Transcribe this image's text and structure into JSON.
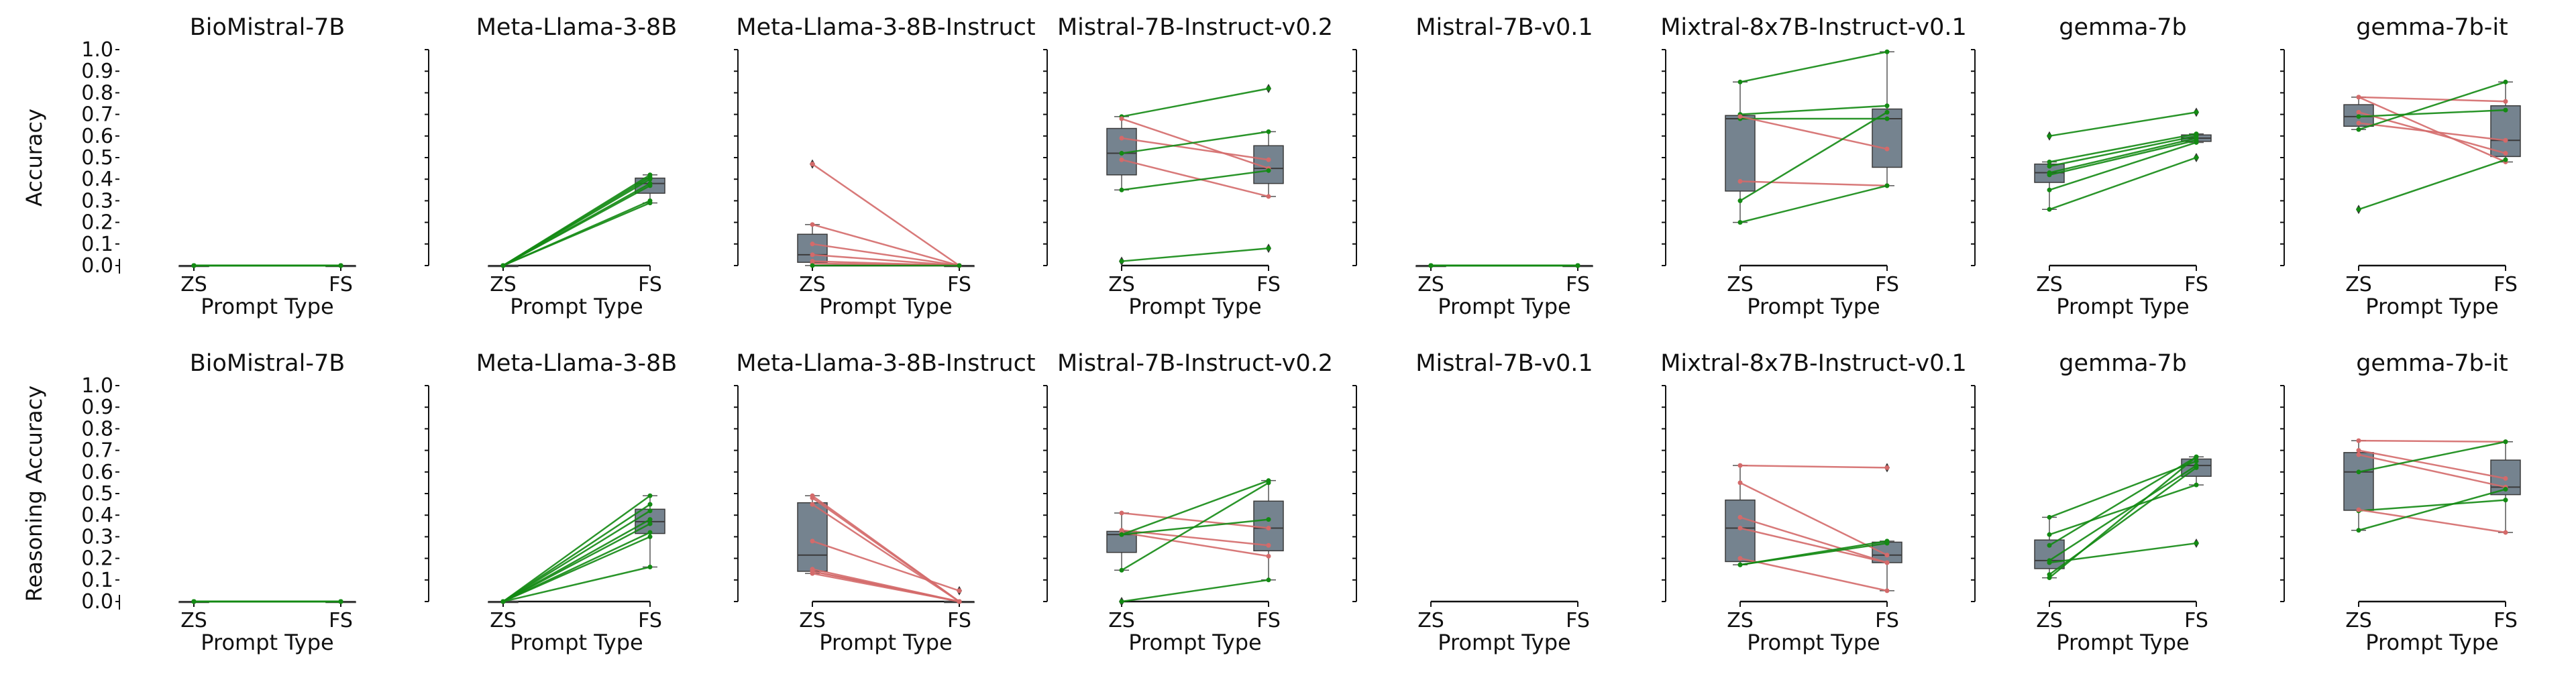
{
  "chart_data": {
    "type": "box+paired-line",
    "xticks": [
      "ZS",
      "FS"
    ],
    "xlabel": "Prompt Type",
    "yticks": [
      "0.0",
      "0.1",
      "0.2",
      "0.3",
      "0.4",
      "0.5",
      "0.6",
      "0.7",
      "0.8",
      "0.9",
      "1.0"
    ],
    "ylim": [
      0,
      1
    ],
    "grid": false,
    "colors": {
      "improved": "#138a13",
      "declined": "#d46a6a",
      "box": "#75838f",
      "box_edge": "#3b3b3b"
    },
    "rows": [
      {
        "ylabel": "Accuracy",
        "panels": [
          {
            "title": "BioMistral-7B",
            "pairs": [
              [
                0,
                0
              ],
              [
                0,
                0
              ],
              [
                0,
                0
              ],
              [
                0,
                0
              ],
              [
                0,
                0
              ],
              [
                0,
                0
              ],
              [
                0,
                0
              ]
            ]
          },
          {
            "title": "Meta-Llama-3-8B",
            "pairs": [
              [
                0,
                0.42
              ],
              [
                0,
                0.41
              ],
              [
                0,
                0.4
              ],
              [
                0,
                0.38
              ],
              [
                0,
                0.37
              ],
              [
                0,
                0.3
              ],
              [
                0,
                0.29
              ]
            ]
          },
          {
            "title": "Meta-Llama-3-8B-Instruct",
            "pairs": [
              [
                0.47,
                0
              ],
              [
                0.19,
                0
              ],
              [
                0.1,
                0
              ],
              [
                0.05,
                0
              ],
              [
                0.02,
                0
              ],
              [
                0.01,
                0
              ],
              [
                0,
                0
              ]
            ]
          },
          {
            "title": "Mistral-7B-Instruct-v0.2",
            "pairs": [
              [
                0.69,
                0.82
              ],
              [
                0.68,
                0.45
              ],
              [
                0.59,
                0.49
              ],
              [
                0.52,
                0.62
              ],
              [
                0.49,
                0.32
              ],
              [
                0.35,
                0.44
              ],
              [
                0.02,
                0.08
              ]
            ]
          },
          {
            "title": "Mistral-7B-v0.1",
            "pairs": [
              [
                0,
                0
              ],
              [
                0,
                0
              ],
              [
                0,
                0
              ],
              [
                0,
                0
              ],
              [
                0,
                0
              ],
              [
                0,
                0
              ],
              [
                0,
                0
              ]
            ]
          },
          {
            "title": "Mixtral-8x7B-Instruct-v0.1",
            "pairs": [
              [
                0.85,
                0.99
              ],
              [
                0.7,
                0.74
              ],
              [
                0.68,
                0.68
              ],
              [
                0.69,
                0.54
              ],
              [
                0.39,
                0.37
              ],
              [
                0.3,
                0.71
              ],
              [
                0.2,
                0.37
              ]
            ]
          },
          {
            "title": "gemma-7b",
            "pairs": [
              [
                0.6,
                0.71
              ],
              [
                0.48,
                0.61
              ],
              [
                0.46,
                0.6
              ],
              [
                0.43,
                0.59
              ],
              [
                0.42,
                0.58
              ],
              [
                0.35,
                0.57
              ],
              [
                0.26,
                0.5
              ]
            ]
          },
          {
            "title": "gemma-7b-it",
            "pairs": [
              [
                0.78,
                0.76
              ],
              [
                0.78,
                0.48
              ],
              [
                0.71,
                0.52
              ],
              [
                0.69,
                0.72
              ],
              [
                0.66,
                0.58
              ],
              [
                0.63,
                0.85
              ],
              [
                0.26,
                0.49
              ]
            ]
          }
        ]
      },
      {
        "ylabel": "Reasoning Accuracy",
        "panels": [
          {
            "title": "BioMistral-7B",
            "pairs": [
              [
                0,
                0
              ],
              [
                0,
                0
              ],
              [
                0,
                0
              ],
              [
                0,
                0
              ],
              [
                0,
                0
              ],
              [
                0,
                0
              ],
              [
                0,
                0
              ]
            ]
          },
          {
            "title": "Meta-Llama-3-8B",
            "pairs": [
              [
                0,
                0.49
              ],
              [
                0,
                0.45
              ],
              [
                0,
                0.42
              ],
              [
                0,
                0.38
              ],
              [
                0,
                0.36
              ],
              [
                0,
                0.32
              ],
              [
                0,
                0.3
              ],
              [
                0,
                0.16
              ]
            ]
          },
          {
            "title": "Meta-Llama-3-8B-Instruct",
            "pairs": [
              [
                0.49,
                0
              ],
              [
                0.48,
                0
              ],
              [
                0.45,
                0
              ],
              [
                0.28,
                0.05
              ],
              [
                0.15,
                0
              ],
              [
                0.14,
                0
              ],
              [
                0.14,
                0
              ],
              [
                0.13,
                0
              ]
            ]
          },
          {
            "title": "Mistral-7B-Instruct-v0.2",
            "pairs": [
              [
                0.41,
                0.34
              ],
              [
                0.33,
                0.26
              ],
              [
                0.32,
                0.21
              ],
              [
                0.31,
                0.56
              ],
              [
                0.31,
                0.38
              ],
              [
                0.145,
                0.55
              ],
              [
                0,
                0.1
              ]
            ]
          },
          {
            "title": "Mistral-7B-v0.1",
            "pairs": []
          },
          {
            "title": "Mixtral-8x7B-Instruct-v0.1",
            "pairs": [
              [
                0.63,
                0.62
              ],
              [
                0.55,
                0.215
              ],
              [
                0.39,
                0.18
              ],
              [
                0.34,
                0.18
              ],
              [
                0.2,
                0.05
              ],
              [
                0.17,
                0.28
              ],
              [
                0.17,
                0.27
              ]
            ]
          },
          {
            "title": "gemma-7b",
            "pairs": [
              [
                0.39,
                0.65
              ],
              [
                0.31,
                0.54
              ],
              [
                0.26,
                0.67
              ],
              [
                0.19,
                0.63
              ],
              [
                0.18,
                0.27
              ],
              [
                0.11,
                0.67
              ],
              [
                0.125,
                0.62
              ]
            ]
          },
          {
            "title": "gemma-7b-it",
            "pairs": [
              [
                0.745,
                0.74
              ],
              [
                0.7,
                0.57
              ],
              [
                0.68,
                0.53
              ],
              [
                0.6,
                0.74
              ],
              [
                0.42,
                0.47
              ],
              [
                0.425,
                0.32
              ],
              [
                0.33,
                0.52
              ]
            ]
          }
        ]
      }
    ]
  }
}
